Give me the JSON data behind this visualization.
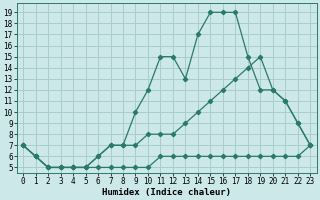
{
  "xlabel": "Humidex (Indice chaleur)",
  "background_color": "#cce8e8",
  "grid_color": "#aacccc",
  "line_color": "#2a7a6a",
  "xlim": [
    -0.5,
    23.5
  ],
  "ylim": [
    4.5,
    19.8
  ],
  "xticks": [
    0,
    1,
    2,
    3,
    4,
    5,
    6,
    7,
    8,
    9,
    10,
    11,
    12,
    13,
    14,
    15,
    16,
    17,
    18,
    19,
    20,
    21,
    22,
    23
  ],
  "yticks": [
    5,
    6,
    7,
    8,
    9,
    10,
    11,
    12,
    13,
    14,
    15,
    16,
    17,
    18,
    19
  ],
  "series1_x": [
    0,
    1,
    2,
    3,
    4,
    5,
    6,
    7,
    8,
    9,
    10,
    11,
    12,
    13,
    14,
    15,
    16,
    17,
    18,
    19,
    20,
    21,
    22,
    23
  ],
  "series1_y": [
    7,
    6,
    5,
    5,
    5,
    5,
    5,
    5,
    5,
    5,
    5,
    6,
    6,
    6,
    6,
    6,
    6,
    6,
    6,
    6,
    6,
    6,
    6,
    7
  ],
  "series2_x": [
    0,
    1,
    2,
    3,
    4,
    5,
    6,
    7,
    8,
    9,
    10,
    11,
    12,
    13,
    14,
    15,
    16,
    17,
    18,
    19,
    20,
    21,
    22,
    23
  ],
  "series2_y": [
    7,
    6,
    5,
    5,
    5,
    5,
    6,
    7,
    7,
    7,
    8,
    8,
    8,
    9,
    10,
    11,
    12,
    13,
    14,
    15,
    12,
    11,
    9,
    7
  ],
  "series3_x": [
    0,
    1,
    2,
    3,
    4,
    5,
    6,
    7,
    8,
    9,
    10,
    11,
    12,
    13,
    14,
    15,
    16,
    17,
    18,
    19,
    20,
    21,
    22,
    23
  ],
  "series3_y": [
    7,
    6,
    5,
    5,
    5,
    5,
    6,
    7,
    7,
    10,
    12,
    15,
    15,
    13,
    17,
    19,
    19,
    19,
    15,
    12,
    12,
    11,
    9,
    7
  ],
  "marker": "D",
  "marker_size": 2.2,
  "line_width": 0.9,
  "tick_fontsize": 5.5,
  "xlabel_fontsize": 6.5
}
